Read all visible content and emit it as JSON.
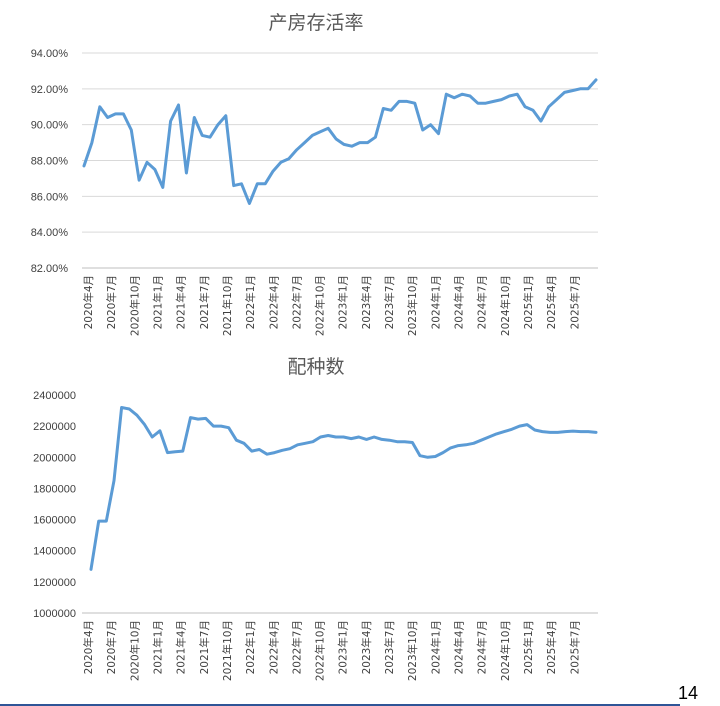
{
  "page_number": "14",
  "colors": {
    "series": "#5b9bd5",
    "grid": "#d9d9d9",
    "footer_bar": "#2f5597"
  },
  "chart_data": [
    {
      "type": "line",
      "title": "产房存活率",
      "xlabel": "",
      "ylabel": "",
      "ylim": [
        82,
        94
      ],
      "yticks": [
        "82.00%",
        "84.00%",
        "86.00%",
        "88.00%",
        "90.00%",
        "92.00%",
        "94.00%"
      ],
      "x_tick_labels": [
        "2020年4月",
        "2020年7月",
        "2020年10月",
        "2021年1月",
        "2021年4月",
        "2021年7月",
        "2021年10月",
        "2022年1月",
        "2022年4月",
        "2022年7月",
        "2022年10月",
        "2023年1月",
        "2023年4月",
        "2023年7月",
        "2023年10月",
        "2024年1月",
        "2024年4月",
        "2024年7月",
        "2024年10月",
        "2025年1月",
        "2025年4月",
        "2025年7月"
      ],
      "grid": true,
      "series": [
        {
          "values": [
            87.7,
            89.0,
            91.0,
            90.4,
            90.6,
            90.6,
            89.7,
            86.9,
            87.9,
            87.5,
            86.5,
            90.2,
            91.1,
            87.3,
            90.4,
            89.4,
            89.3,
            90.0,
            90.5,
            86.6,
            86.7,
            85.6,
            86.7,
            86.7,
            87.4,
            87.9,
            88.1,
            88.6,
            89.0,
            89.4,
            89.6,
            89.8,
            89.2,
            88.9,
            88.8,
            89.0,
            89.0,
            89.3,
            90.9,
            90.8,
            91.3,
            91.3,
            91.2,
            89.7,
            90.0,
            89.5,
            91.7,
            91.5,
            91.7,
            91.6,
            91.2,
            91.2,
            91.3,
            91.4,
            91.6,
            91.7,
            91.0,
            90.8,
            90.2,
            91.0,
            91.4,
            91.8,
            91.9,
            92.0,
            92.0,
            92.5
          ]
        }
      ]
    },
    {
      "type": "line",
      "title": "配种数",
      "xlabel": "",
      "ylabel": "",
      "ylim": [
        1000000,
        2400000
      ],
      "yticks": [
        "1000000",
        "1200000",
        "1400000",
        "1600000",
        "1800000",
        "2000000",
        "2200000",
        "2400000"
      ],
      "x_tick_labels": [
        "2020年4月",
        "2020年7月",
        "2020年10月",
        "2021年1月",
        "2021年4月",
        "2021年7月",
        "2021年10月",
        "2022年1月",
        "2022年4月",
        "2022年7月",
        "2022年10月",
        "2023年1月",
        "2023年4月",
        "2023年7月",
        "2023年10月",
        "2024年1月",
        "2024年4月",
        "2024年7月",
        "2024年10月",
        "2025年1月",
        "2025年4月",
        "2025年7月"
      ],
      "grid": false,
      "series": [
        {
          "values": [
            1280000,
            1590000,
            1590000,
            1850000,
            2320000,
            2310000,
            2270000,
            2210000,
            2130000,
            2170000,
            2030000,
            2035000,
            2040000,
            2255000,
            2245000,
            2250000,
            2200000,
            2200000,
            2190000,
            2110000,
            2090000,
            2040000,
            2050000,
            2020000,
            2030000,
            2045000,
            2055000,
            2080000,
            2090000,
            2100000,
            2130000,
            2140000,
            2130000,
            2130000,
            2120000,
            2130000,
            2115000,
            2130000,
            2115000,
            2110000,
            2100000,
            2100000,
            2095000,
            2010000,
            2000000,
            2005000,
            2030000,
            2060000,
            2075000,
            2080000,
            2090000,
            2110000,
            2130000,
            2150000,
            2165000,
            2180000,
            2200000,
            2210000,
            2175000,
            2165000,
            2160000,
            2160000,
            2165000,
            2168000,
            2165000,
            2165000,
            2160000
          ]
        }
      ]
    }
  ]
}
